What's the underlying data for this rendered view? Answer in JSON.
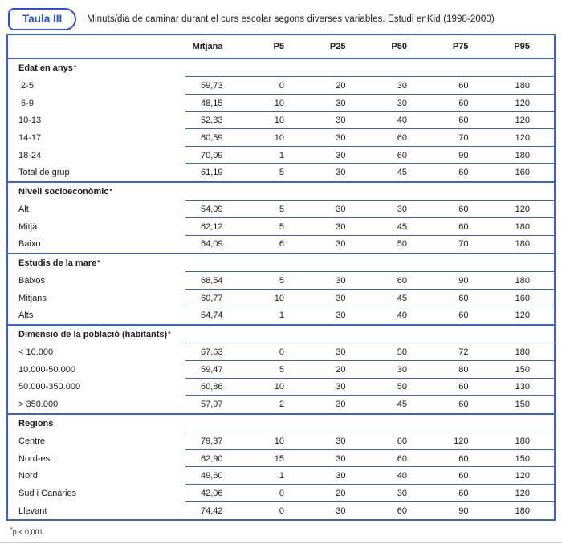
{
  "colors": {
    "line_blue": "#3b61d2",
    "brand_blue": "#2b50d8",
    "text_ink": "#1c1c1c",
    "bottom_rule_gray": "#c6c6c6"
  },
  "badge": {
    "label": "Taula III"
  },
  "title": "Minuts/dia de caminar durant el curs escolar segons diverses variables. Estudi enKid (1998-2000)",
  "table": {
    "column_headers": [
      "Mitjana",
      "P5",
      "P25",
      "P50",
      "P75",
      "P95"
    ],
    "sections": [
      {
        "title": "Edat en anys",
        "marker": "*",
        "rows": [
          {
            "label": " 2-5",
            "values": [
              "59,73",
              "0",
              "20",
              "30",
              "60",
              "180"
            ]
          },
          {
            "label": " 6-9",
            "values": [
              "48,15",
              "10",
              "30",
              "30",
              "60",
              "120"
            ]
          },
          {
            "label": "10-13",
            "values": [
              "52,33",
              "10",
              "30",
              "40",
              "60",
              "120"
            ]
          },
          {
            "label": "14-17",
            "values": [
              "60,59",
              "10",
              "30",
              "60",
              "70",
              "120"
            ]
          },
          {
            "label": "18-24",
            "values": [
              "70,09",
              "1",
              "30",
              "60",
              "90",
              "180"
            ]
          },
          {
            "label": "Total de grup",
            "values": [
              "61,19",
              "5",
              "30",
              "45",
              "60",
              "160"
            ]
          }
        ]
      },
      {
        "title": "Nivell socioeconòmic",
        "marker": "*",
        "rows": [
          {
            "label": "Alt",
            "values": [
              "54,09",
              "5",
              "30",
              "30",
              "60",
              "120"
            ]
          },
          {
            "label": "Mitjà",
            "values": [
              "62,12",
              "5",
              "30",
              "45",
              "60",
              "180"
            ]
          },
          {
            "label": "Baixo",
            "values": [
              "64,09",
              "6",
              "30",
              "50",
              "70",
              "180"
            ]
          }
        ]
      },
      {
        "title": "Estudis de la mare",
        "marker": "*",
        "rows": [
          {
            "label": "Baixos",
            "values": [
              "68,54",
              "5",
              "30",
              "60",
              "90",
              "180"
            ]
          },
          {
            "label": "Mitjans",
            "values": [
              "60,77",
              "10",
              "30",
              "45",
              "60",
              "160"
            ]
          },
          {
            "label": "Alts",
            "values": [
              "54,74",
              "1",
              "30",
              "40",
              "60",
              "120"
            ]
          }
        ]
      },
      {
        "title": "Dimensió de la població (habitants)",
        "marker": "*",
        "rows": [
          {
            "label": "< 10.000",
            "values": [
              "67,63",
              "0",
              "30",
              "50",
              "72",
              "180"
            ]
          },
          {
            "label": "10.000-50.000",
            "values": [
              "59,47",
              "5",
              "20",
              "30",
              "80",
              "150"
            ]
          },
          {
            "label": "50.000-350.000",
            "values": [
              "60,86",
              "10",
              "30",
              "50",
              "60",
              "130"
            ]
          },
          {
            "label": "> 350.000",
            "values": [
              "57,97",
              "2",
              "30",
              "45",
              "60",
              "150"
            ]
          }
        ]
      },
      {
        "title": "Regions",
        "marker": "",
        "rows": [
          {
            "label": "Centre",
            "values": [
              "79,37",
              "10",
              "30",
              "60",
              "120",
              "180"
            ]
          },
          {
            "label": "Nord-est",
            "values": [
              "62,90",
              "15",
              "30",
              "60",
              "60",
              "150"
            ]
          },
          {
            "label": "Nord",
            "values": [
              "49,60",
              "1",
              "30",
              "40",
              "60",
              "120"
            ]
          },
          {
            "label": "Sud i Canàries",
            "values": [
              "42,06",
              "0",
              "20",
              "30",
              "60",
              "120"
            ]
          },
          {
            "label": "Llevant",
            "values": [
              "74,42",
              "0",
              "30",
              "60",
              "90",
              "180"
            ]
          }
        ]
      }
    ]
  },
  "footnote": {
    "marker": "*",
    "text": "p < 0,001."
  }
}
